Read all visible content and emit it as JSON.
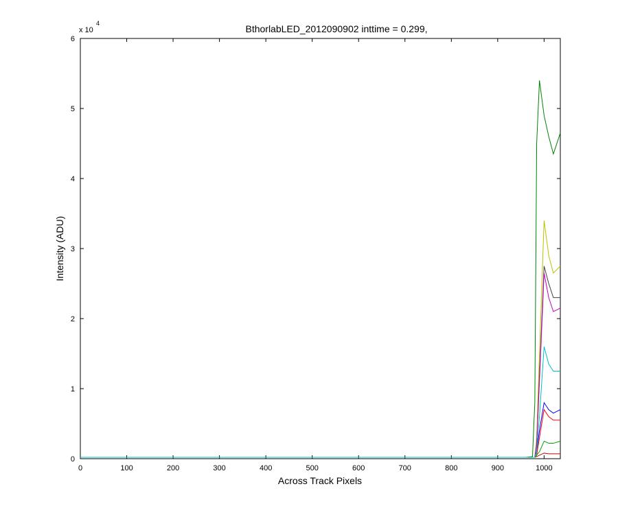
{
  "chart_data": {
    "type": "line",
    "title": "BthorlabLED_2012090902 inttime = 0.299,",
    "x_label": "Across Track Pixels",
    "y_label": "Intensity (ADU)",
    "y_multiplier": {
      "base": "x 10",
      "exponent": "4"
    },
    "x": [
      0,
      960,
      975,
      980,
      984,
      990,
      1000,
      1010,
      1020,
      1035
    ],
    "series": [
      {
        "color": "#008000",
        "values": [
          0.02,
          0.02,
          0.03,
          0.8,
          4.5,
          5.4,
          4.9,
          4.6,
          4.35,
          4.65
        ]
      },
      {
        "color": "#bfbf00",
        "values": [
          0.02,
          0.02,
          0.02,
          0.02,
          0.3,
          1.5,
          3.4,
          2.9,
          2.65,
          2.75
        ]
      },
      {
        "color": "#404040",
        "values": [
          0.02,
          0.02,
          0.02,
          0.02,
          0.2,
          1.2,
          2.75,
          2.5,
          2.3,
          2.3
        ]
      },
      {
        "color": "#bf00bf",
        "values": [
          0.02,
          0.02,
          0.02,
          0.02,
          0.2,
          1.1,
          2.65,
          2.3,
          2.1,
          2.15
        ]
      },
      {
        "color": "#0000ff",
        "values": [
          0.02,
          0.02,
          0.02,
          0.02,
          0.1,
          0.4,
          0.8,
          0.7,
          0.65,
          0.7
        ]
      },
      {
        "color": "#ff0000",
        "values": [
          0.02,
          0.02,
          0.02,
          0.02,
          0.05,
          0.3,
          0.7,
          0.6,
          0.55,
          0.55
        ]
      },
      {
        "color": "#00a000",
        "values": [
          0.02,
          0.02,
          0.02,
          0.02,
          0.05,
          0.1,
          0.25,
          0.22,
          0.22,
          0.25
        ]
      },
      {
        "color": "#c00000",
        "values": [
          0.02,
          0.02,
          0.02,
          0.02,
          0.03,
          0.05,
          0.08,
          0.07,
          0.07,
          0.07
        ]
      },
      {
        "color": "#00bfbf",
        "values": [
          0.02,
          0.02,
          0.02,
          0.02,
          0.1,
          0.6,
          1.6,
          1.35,
          1.25,
          1.25
        ]
      }
    ],
    "xlim": [
      0,
      1035
    ],
    "xticks": [
      0,
      100,
      200,
      300,
      400,
      500,
      600,
      700,
      800,
      900,
      1000
    ],
    "ylim": [
      0,
      6
    ],
    "yticks": [
      0,
      1,
      2,
      3,
      4,
      5,
      6
    ],
    "grid": false
  }
}
